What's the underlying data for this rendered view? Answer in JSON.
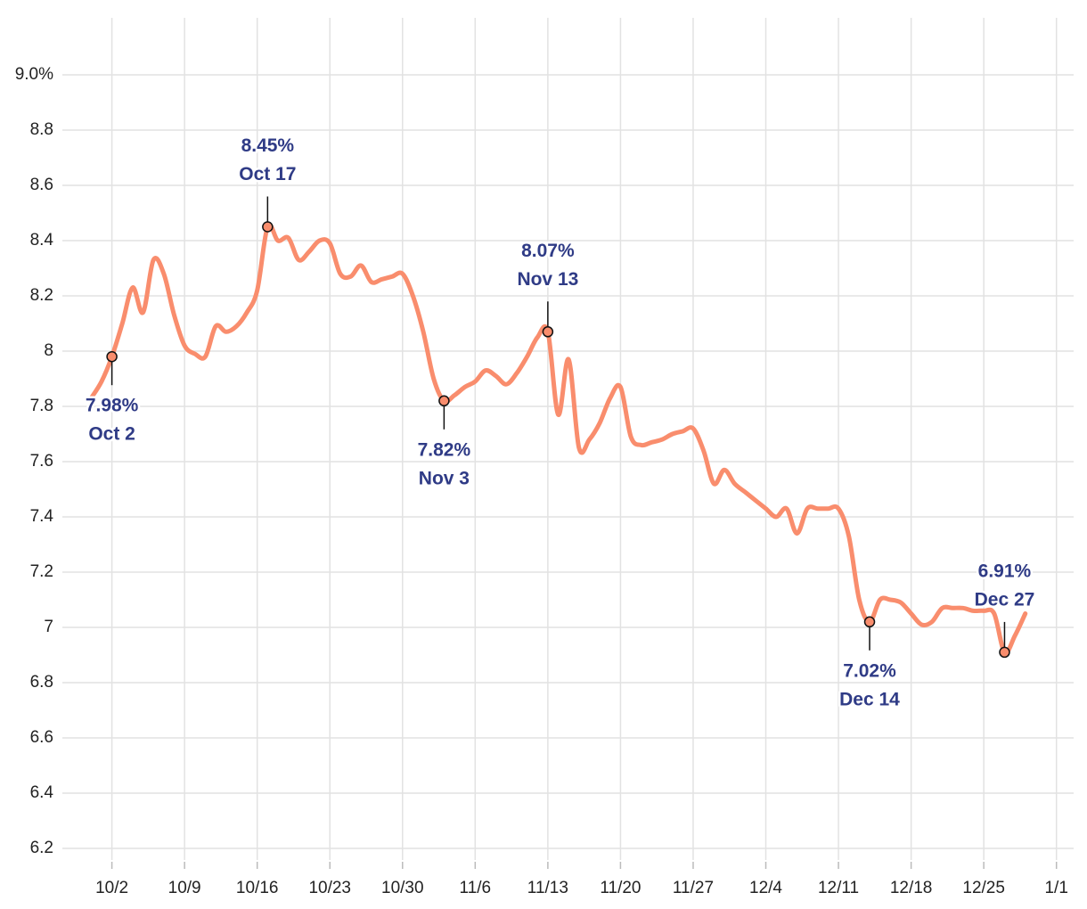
{
  "chart_data": {
    "type": "line",
    "x": [
      "9/30",
      "10/1",
      "10/2",
      "10/3",
      "10/4",
      "10/5",
      "10/6",
      "10/7",
      "10/8",
      "10/9",
      "10/10",
      "10/11",
      "10/12",
      "10/13",
      "10/14",
      "10/15",
      "10/16",
      "10/17",
      "10/18",
      "10/19",
      "10/20",
      "10/21",
      "10/22",
      "10/23",
      "10/24",
      "10/25",
      "10/26",
      "10/27",
      "10/28",
      "10/29",
      "10/30",
      "10/31",
      "11/1",
      "11/2",
      "11/3",
      "11/4",
      "11/5",
      "11/6",
      "11/7",
      "11/8",
      "11/9",
      "11/10",
      "11/11",
      "11/12",
      "11/13",
      "11/14",
      "11/15",
      "11/16",
      "11/17",
      "11/18",
      "11/19",
      "11/20",
      "11/21",
      "11/22",
      "11/23",
      "11/24",
      "11/25",
      "11/26",
      "11/27",
      "11/28",
      "11/29",
      "11/30",
      "12/1",
      "12/2",
      "12/3",
      "12/4",
      "12/5",
      "12/6",
      "12/7",
      "12/8",
      "12/9",
      "12/10",
      "12/11",
      "12/12",
      "12/13",
      "12/14",
      "12/15",
      "12/16",
      "12/17",
      "12/18",
      "12/19",
      "12/20",
      "12/21",
      "12/22",
      "12/23",
      "12/24",
      "12/25",
      "12/26",
      "12/27",
      "12/28",
      "12/29"
    ],
    "series": [
      {
        "color": "#f98d6d",
        "values": [
          7.83,
          7.89,
          7.98,
          8.1,
          8.23,
          8.14,
          8.33,
          8.28,
          8.13,
          8.02,
          7.99,
          7.98,
          8.09,
          8.07,
          8.09,
          8.14,
          8.22,
          8.45,
          8.4,
          8.41,
          8.33,
          8.36,
          8.4,
          8.39,
          8.28,
          8.27,
          8.31,
          8.25,
          8.26,
          8.27,
          8.28,
          8.2,
          8.07,
          7.9,
          7.82,
          7.84,
          7.87,
          7.89,
          7.93,
          7.91,
          7.88,
          7.92,
          7.98,
          8.05,
          8.07,
          7.77,
          7.97,
          7.65,
          7.68,
          7.74,
          7.83,
          7.87,
          7.69,
          7.66,
          7.67,
          7.68,
          7.7,
          7.71,
          7.72,
          7.64,
          7.52,
          7.57,
          7.52,
          7.49,
          7.46,
          7.43,
          7.4,
          7.43,
          7.34,
          7.43,
          7.43,
          7.43,
          7.43,
          7.33,
          7.1,
          7.02,
          7.1,
          7.1,
          7.09,
          7.05,
          7.01,
          7.02,
          7.07,
          7.07,
          7.07,
          7.06,
          7.06,
          7.05,
          6.91,
          6.97,
          7.05
        ]
      }
    ],
    "xlim": [
      "9/28",
      "1/3"
    ],
    "xticks": [
      "10/2",
      "10/9",
      "10/16",
      "10/23",
      "10/30",
      "11/6",
      "11/13",
      "11/20",
      "11/27",
      "12/4",
      "12/11",
      "12/18",
      "12/25",
      "1/1"
    ],
    "ylim": [
      6.1,
      9.2
    ],
    "yticks": [
      6.2,
      6.4,
      6.6,
      6.8,
      7.0,
      7.2,
      7.4,
      7.6,
      7.8,
      8.0,
      8.2,
      8.4,
      8.6,
      8.8,
      {
        "value": 9.0,
        "label": "9.0%"
      }
    ],
    "grid": true,
    "annotations": [
      {
        "x": "10/2",
        "value": 7.98,
        "label": "7.98%",
        "date_label": "Oct 2",
        "position": "below"
      },
      {
        "x": "10/17",
        "value": 8.45,
        "label": "8.45%",
        "date_label": "Oct 17",
        "position": "above"
      },
      {
        "x": "11/3",
        "value": 7.82,
        "label": "7.82%",
        "date_label": "Nov 3",
        "position": "below"
      },
      {
        "x": "11/13",
        "value": 8.07,
        "label": "8.07%",
        "date_label": "Nov 13",
        "position": "above"
      },
      {
        "x": "12/14",
        "value": 7.02,
        "label": "7.02%",
        "date_label": "Dec 14",
        "position": "below"
      },
      {
        "x": "12/27",
        "value": 6.91,
        "label": "6.91%",
        "date_label": "Dec 27",
        "position": "above"
      }
    ]
  }
}
